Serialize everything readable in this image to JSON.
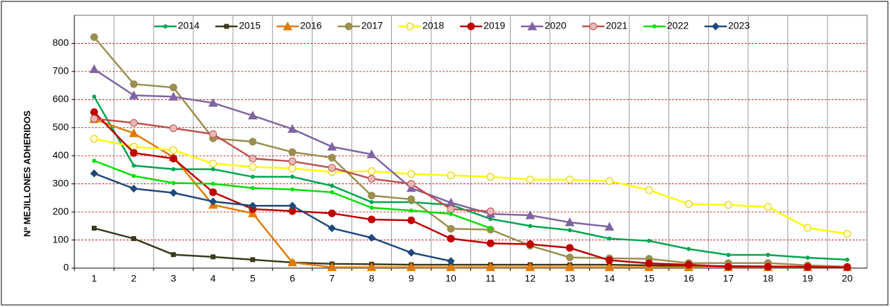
{
  "chart_data": {
    "type": "line",
    "y_label": "Nº MEJILLONES ADHERIDOS",
    "categories": [
      "1",
      "2",
      "3",
      "4",
      "5",
      "6",
      "7",
      "8",
      "9",
      "10",
      "11",
      "12",
      "13",
      "14",
      "15",
      "16",
      "17",
      "18",
      "19",
      "20"
    ],
    "ylim": [
      0,
      900
    ],
    "yticks": [
      0,
      100,
      200,
      300,
      400,
      500,
      600,
      700,
      800
    ],
    "grid": true,
    "legend": "top",
    "series": [
      {
        "name": "2014",
        "color": "#00a650",
        "marker": "dot",
        "values": [
          610,
          365,
          352,
          352,
          325,
          325,
          293,
          235,
          235,
          225,
          175,
          150,
          135,
          105,
          97,
          68,
          47,
          47,
          37,
          30
        ]
      },
      {
        "name": "2015",
        "color": "#3b3a1e",
        "marker": "square",
        "values": [
          142,
          105,
          48,
          40,
          30,
          20,
          15,
          14,
          12,
          12,
          12,
          12,
          12,
          12,
          10,
          8,
          7,
          6,
          5,
          5
        ]
      },
      {
        "name": "2016",
        "color": "#e07b00",
        "marker": "triangle",
        "values": [
          530,
          480,
          395,
          225,
          195,
          20,
          3,
          3,
          3,
          3,
          3,
          3,
          3,
          3,
          3,
          3,
          3,
          3,
          3,
          3
        ]
      },
      {
        "name": "2017",
        "color": "#9b8f4f",
        "marker": "circle",
        "values": [
          822,
          655,
          643,
          462,
          450,
          413,
          393,
          258,
          245,
          140,
          137,
          80,
          38,
          35,
          33,
          18,
          18,
          18,
          10,
          5
        ]
      },
      {
        "name": "2018",
        "color": "#ffff00",
        "marker": "circle",
        "values": [
          460,
          432,
          420,
          372,
          360,
          355,
          342,
          345,
          335,
          330,
          325,
          315,
          315,
          310,
          278,
          228,
          225,
          218,
          143,
          122
        ]
      },
      {
        "name": "2019",
        "color": "#c00000",
        "marker": "circle",
        "values": [
          555,
          410,
          390,
          270,
          210,
          203,
          195,
          173,
          170,
          105,
          88,
          85,
          72,
          28,
          17,
          12,
          5,
          5,
          4,
          3
        ]
      },
      {
        "name": "2020",
        "color": "#8064a2",
        "marker": "triangle",
        "values": [
          708,
          615,
          610,
          588,
          543,
          495,
          432,
          405,
          285,
          233,
          193,
          188,
          163,
          147,
          null,
          null,
          null,
          null,
          null,
          null
        ]
      },
      {
        "name": "2021",
        "color": "#c0504d",
        "marker": "circle",
        "values": [
          532,
          517,
          498,
          477,
          390,
          380,
          357,
          318,
          300,
          210,
          202,
          null,
          null,
          null,
          null,
          null,
          null,
          null,
          null,
          null
        ]
      },
      {
        "name": "2022",
        "color": "#00e000",
        "marker": "dot",
        "values": [
          382,
          328,
          303,
          300,
          285,
          280,
          270,
          215,
          205,
          193,
          142,
          null,
          null,
          null,
          null,
          null,
          null,
          null,
          null,
          null
        ]
      },
      {
        "name": "2023",
        "color": "#1f497d",
        "marker": "diamond",
        "values": [
          337,
          283,
          268,
          237,
          222,
          222,
          142,
          108,
          55,
          25,
          null,
          null,
          null,
          null,
          null,
          null,
          null,
          null,
          null,
          null
        ]
      }
    ]
  }
}
